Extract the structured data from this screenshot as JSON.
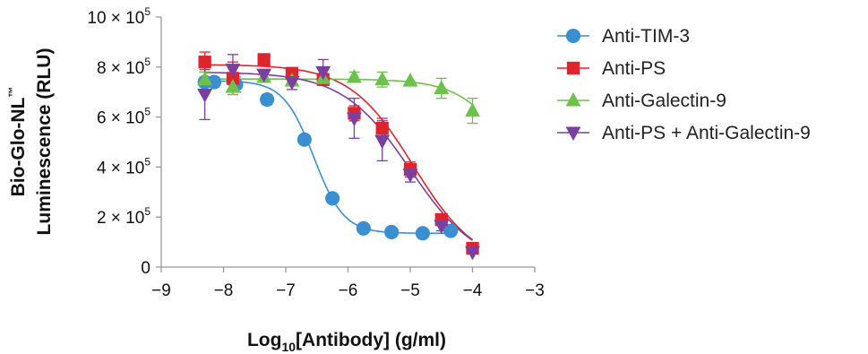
{
  "chart_data": {
    "type": "scatter",
    "xlabel": {
      "main": "Log",
      "sub": "10",
      "rest": "[Antibody] (g/ml)"
    },
    "ylabel": {
      "line1_main": "Bio-Glo-NL",
      "line1_sup": "™",
      "line2": "Luminescence (RLU)"
    },
    "xlim": [
      -9,
      -3
    ],
    "ylim": [
      0,
      1000000
    ],
    "xticks": [
      {
        "value": -9,
        "label": "−9"
      },
      {
        "value": -8,
        "label": "−8"
      },
      {
        "value": -7,
        "label": "−7"
      },
      {
        "value": -6,
        "label": "−6"
      },
      {
        "value": -5,
        "label": "−5"
      },
      {
        "value": -4,
        "label": "−4"
      },
      {
        "value": -3,
        "label": "−3"
      }
    ],
    "yticks": [
      {
        "value": 0,
        "mant": "0",
        "exp": ""
      },
      {
        "value": 200000,
        "mant": "2 × 10",
        "exp": "5"
      },
      {
        "value": 400000,
        "mant": "4 × 10",
        "exp": "5"
      },
      {
        "value": 600000,
        "mant": "6 × 10",
        "exp": "5"
      },
      {
        "value": 800000,
        "mant": "8 × 10",
        "exp": "5"
      },
      {
        "value": 1000000,
        "mant": "10 × 10",
        "exp": "5"
      }
    ],
    "grid": false,
    "legend_position": "right",
    "series": [
      {
        "name": "Anti-TIM-3",
        "color": "#3a8fd1",
        "marker": "circle",
        "x": [
          -8.3,
          -8.15,
          -7.8,
          -7.3,
          -6.7,
          -6.25,
          -5.75,
          -5.3,
          -4.8,
          -4.35
        ],
        "y": [
          740000,
          740000,
          730000,
          670000,
          510000,
          275000,
          155000,
          140000,
          135000,
          145000
        ],
        "err": [
          20000,
          20000,
          30000,
          20000,
          0,
          0,
          0,
          0,
          0,
          0
        ],
        "fit": {
          "bottom": 135000,
          "top": 745000,
          "ec50": -6.55,
          "hill": 1.8
        }
      },
      {
        "name": "Anti-PS",
        "color": "#e0242b",
        "marker": "square",
        "x": [
          -8.3,
          -7.85,
          -7.35,
          -6.9,
          -6.4,
          -5.9,
          -5.45,
          -5.0,
          -4.5,
          -4.0
        ],
        "y": [
          820000,
          755000,
          830000,
          775000,
          750000,
          615000,
          555000,
          390000,
          190000,
          75000
        ],
        "err": [
          40000,
          65000,
          0,
          0,
          15000,
          30000,
          40000,
          30000,
          10000,
          0
        ],
        "fit": {
          "bottom": 0,
          "top": 810000,
          "ec50": -4.95,
          "hill": 0.85
        }
      },
      {
        "name": "Anti-Galectin-9",
        "color": "#6cc24a",
        "marker": "triangle-up",
        "x": [
          -8.3,
          -7.85,
          -7.35,
          -6.9,
          -6.4,
          -5.9,
          -5.45,
          -5.0,
          -4.5,
          -4.0
        ],
        "y": [
          750000,
          720000,
          760000,
          745000,
          755000,
          760000,
          750000,
          745000,
          715000,
          625000
        ],
        "err": [
          30000,
          30000,
          0,
          20000,
          20000,
          20000,
          30000,
          0,
          40000,
          50000
        ],
        "fit": {
          "bottom": 0,
          "top": 752000,
          "ec50": -3.2,
          "hill": 1.0
        }
      },
      {
        "name": "Anti-PS + Anti-Galectin-9",
        "color": "#7b3fa0",
        "marker": "triangle-down",
        "x": [
          -8.3,
          -7.85,
          -7.35,
          -6.9,
          -6.4,
          -5.9,
          -5.45,
          -5.0,
          -4.5,
          -4.0
        ],
        "y": [
          690000,
          790000,
          770000,
          740000,
          780000,
          595000,
          505000,
          370000,
          165000,
          60000
        ],
        "err": [
          100000,
          60000,
          20000,
          30000,
          50000,
          80000,
          80000,
          30000,
          20000,
          0
        ],
        "fit": {
          "bottom": 0,
          "top": 780000,
          "ec50": -5.0,
          "hill": 0.8
        }
      }
    ]
  }
}
